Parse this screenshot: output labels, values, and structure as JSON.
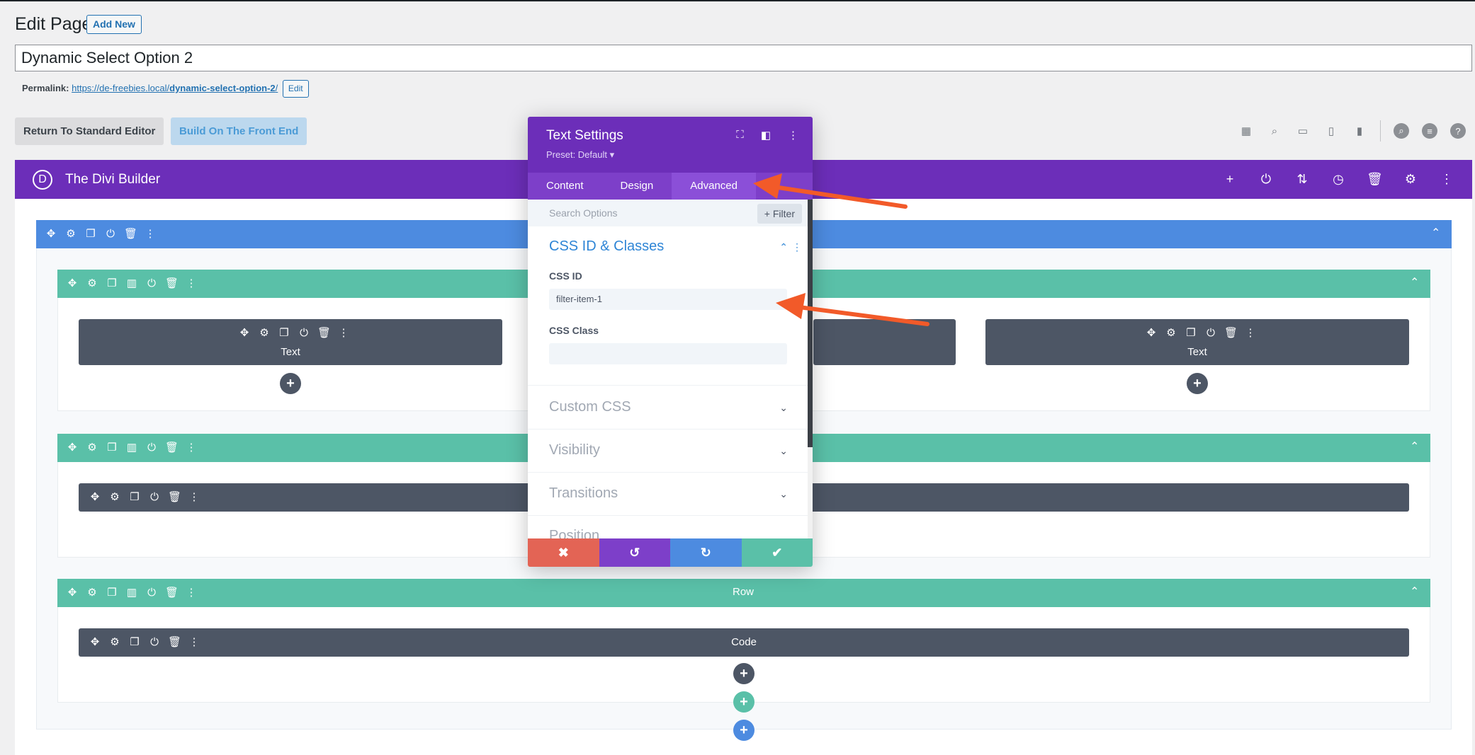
{
  "header": {
    "title": "Edit Page",
    "add_new": "Add New",
    "post_title": "Dynamic Select Option 2",
    "permalink_label": "Permalink:",
    "permalink_base": "https://de-freebies.local/",
    "permalink_slug": "dynamic-select-option-2",
    "permalink_trail": "/",
    "permalink_edit": "Edit",
    "return_button": "Return To Standard Editor",
    "front_button": "Build On The Front End"
  },
  "divi": {
    "logo": "D",
    "name": "The Divi Builder"
  },
  "rows": [
    {
      "label": "",
      "modules": [
        "Text",
        "",
        "Text"
      ]
    },
    {
      "label": "",
      "modules": [
        ""
      ]
    },
    {
      "label": "Row",
      "modules": [
        "Code"
      ]
    }
  ],
  "modal": {
    "title": "Text Settings",
    "preset": "Preset: Default",
    "tabs": [
      "Content",
      "Design",
      "Advanced"
    ],
    "active_tab": "Advanced",
    "search_placeholder": "Search Options",
    "filter_label": "Filter",
    "groups": [
      {
        "title": "CSS ID & Classes",
        "open": true
      },
      {
        "title": "Custom CSS",
        "open": false
      },
      {
        "title": "Visibility",
        "open": false
      },
      {
        "title": "Transitions",
        "open": false
      },
      {
        "title": "Position",
        "open": false
      }
    ],
    "css_id_label": "CSS ID",
    "css_id_value": "filter-item-1",
    "css_class_label": "CSS Class",
    "css_class_value": ""
  },
  "colors": {
    "divi_purple": "#6c2eb9",
    "section_blue": "#4d8be0",
    "row_green": "#5ac0a8",
    "module_gray": "#4d5665",
    "annotation_orange": "#f25a29"
  },
  "icons": {
    "toolbar": [
      "layout-icon",
      "zoom-icon",
      "desktop-icon",
      "tablet-icon",
      "phone-icon",
      "search-icon",
      "layers-icon",
      "help-icon"
    ],
    "divi_bar": [
      "add-icon",
      "power-icon",
      "sort-icon",
      "history-icon",
      "trash-icon",
      "settings-icon",
      "more-icon"
    ]
  }
}
